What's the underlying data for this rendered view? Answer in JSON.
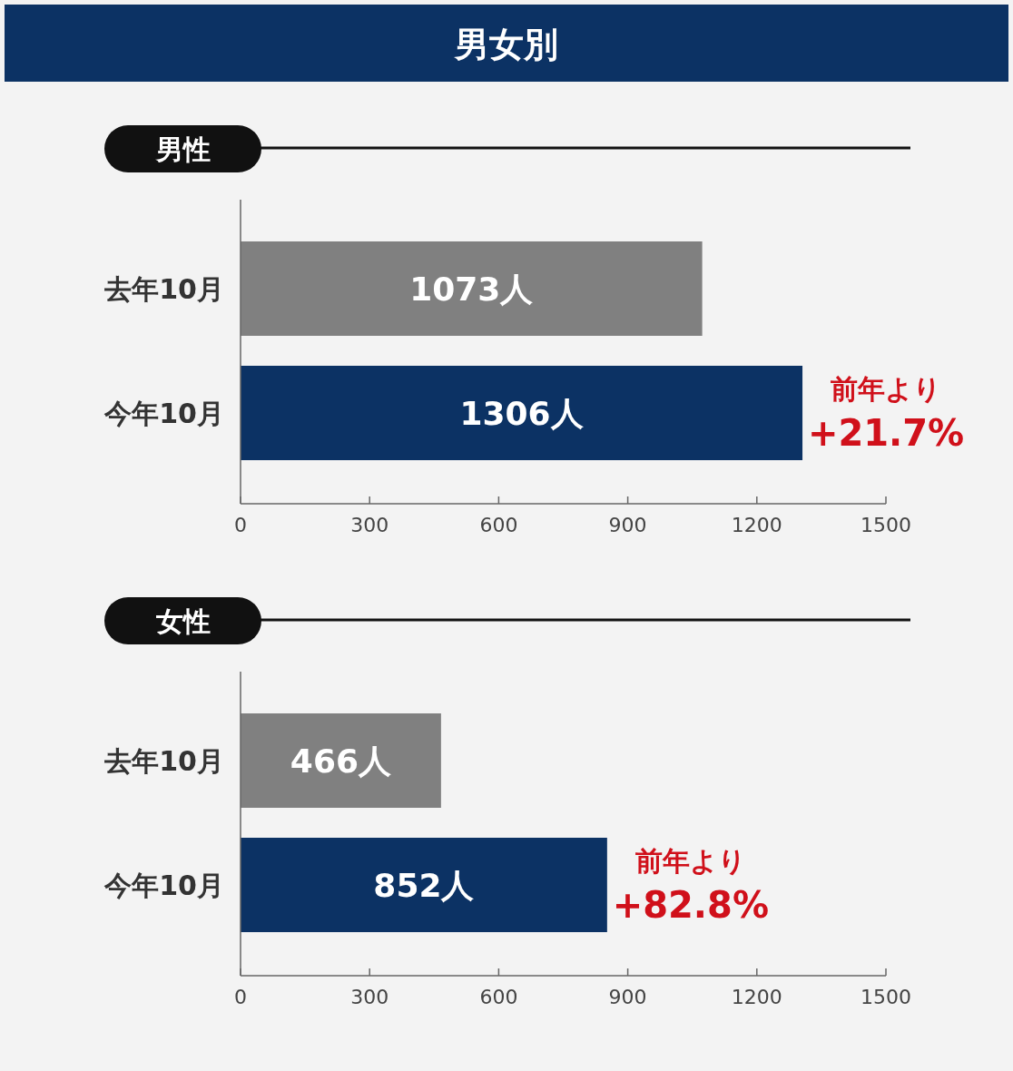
{
  "chart_data": [
    {
      "type": "bar",
      "orientation": "horizontal",
      "title": "男女別",
      "subtitle": "男性",
      "categories": [
        "去年10月",
        "今年10月"
      ],
      "values": [
        1073,
        1306
      ],
      "colors": [
        "#808080",
        "#0c3264"
      ],
      "value_labels": [
        "1073人",
        "1306人"
      ],
      "xlim": [
        0,
        1500
      ],
      "xticks": [
        0,
        300,
        600,
        900,
        1200,
        1500
      ],
      "annotations": [
        "前年より",
        "+21.7%"
      ],
      "grid": false
    },
    {
      "type": "bar",
      "orientation": "horizontal",
      "subtitle": "女性",
      "categories": [
        "去年10月",
        "今年10月"
      ],
      "values": [
        466,
        852
      ],
      "colors": [
        "#808080",
        "#0c3264"
      ],
      "value_labels": [
        "466人",
        "852人"
      ],
      "xlim": [
        0,
        1500
      ],
      "xticks": [
        0,
        300,
        600,
        900,
        1200,
        1500
      ],
      "annotations": [
        "前年より",
        "+82.8%"
      ],
      "grid": false
    }
  ]
}
